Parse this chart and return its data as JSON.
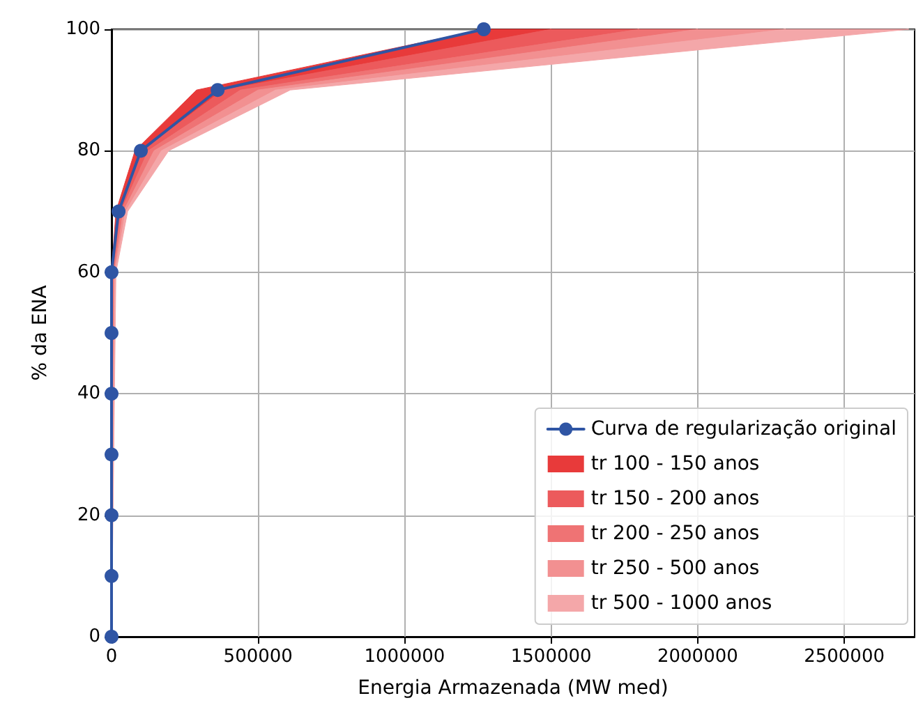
{
  "chart_data": {
    "type": "line",
    "xlabel": "Energia Armazenada (MW med)",
    "ylabel": "% da ENA",
    "xlim": [
      0,
      2740000
    ],
    "xticks": [
      0,
      500000,
      1000000,
      1500000,
      2000000,
      2500000
    ],
    "ylim": [
      0,
      100
    ],
    "yticks": [
      0,
      20,
      40,
      60,
      80,
      100
    ],
    "grid": true,
    "legend": "bottom right",
    "series": [
      {
        "name": "Curva de regularização original",
        "marker": "circle",
        "color": "#2f55a4",
        "x": [
          0,
          0,
          0,
          0,
          0,
          0,
          0,
          24000,
          100000,
          362000,
          1270000
        ],
        "values": [
          0,
          10,
          20,
          30,
          40,
          50,
          60,
          70,
          80,
          90,
          100
        ]
      },
      {
        "name": "tr 100 - 150 anos",
        "type": "area",
        "color": "#e83a3a",
        "x": [
          0,
          0,
          15000,
          80000,
          290000,
          1270000,
          1500000,
          380000,
          105000,
          25000,
          3000,
          0
        ],
        "values": [
          0,
          60,
          70,
          80,
          90,
          100,
          100,
          90,
          80,
          70,
          60,
          0
        ]
      },
      {
        "name": "tr 150 - 200 anos",
        "type": "area",
        "color": "#ec5a5c",
        "x": [
          0,
          3000,
          25000,
          105000,
          380000,
          1500000,
          1800000,
          440000,
          125000,
          32000,
          6000,
          0
        ],
        "values": [
          0,
          60,
          70,
          80,
          90,
          100,
          100,
          90,
          80,
          70,
          60,
          0
        ]
      },
      {
        "name": "tr 200 - 250 anos",
        "type": "area",
        "color": "#ef7374",
        "x": [
          0,
          6000,
          32000,
          125000,
          440000,
          1800000,
          2000000,
          500000,
          145000,
          40000,
          9000,
          0
        ],
        "values": [
          0,
          60,
          70,
          80,
          90,
          100,
          100,
          90,
          80,
          70,
          60,
          0
        ]
      },
      {
        "name": "tr 250 - 500 anos",
        "type": "area",
        "color": "#f29091",
        "x": [
          0,
          9000,
          40000,
          145000,
          500000,
          2000000,
          2300000,
          560000,
          170000,
          48000,
          12000,
          0
        ],
        "values": [
          0,
          60,
          70,
          80,
          90,
          100,
          100,
          90,
          80,
          70,
          60,
          0
        ]
      },
      {
        "name": "tr 500 - 1000 anos",
        "type": "area",
        "color": "#f4a7a9",
        "x": [
          0,
          12000,
          48000,
          170000,
          560000,
          2300000,
          2720000,
          610000,
          195000,
          55000,
          15000,
          0
        ],
        "values": [
          0,
          60,
          70,
          80,
          90,
          100,
          100,
          90,
          80,
          70,
          60,
          0
        ]
      }
    ]
  }
}
